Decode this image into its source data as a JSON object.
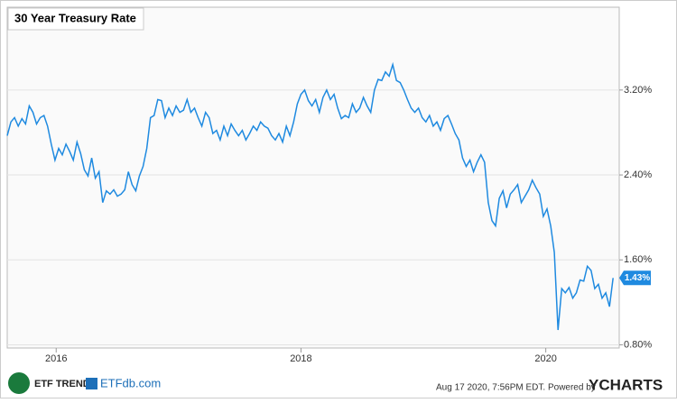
{
  "chart_data": {
    "type": "line",
    "title": "30 Year Treasury Rate",
    "x": [
      2015.6,
      2015.63,
      2015.66,
      2015.69,
      2015.72,
      2015.75,
      2015.78,
      2015.81,
      2015.84,
      2015.87,
      2015.9,
      2015.93,
      2015.96,
      2015.99,
      2016.02,
      2016.05,
      2016.08,
      2016.11,
      2016.14,
      2016.17,
      2016.2,
      2016.23,
      2016.26,
      2016.29,
      2016.32,
      2016.35,
      2016.38,
      2016.41,
      2016.44,
      2016.47,
      2016.5,
      2016.53,
      2016.56,
      2016.59,
      2016.62,
      2016.65,
      2016.68,
      2016.71,
      2016.74,
      2016.77,
      2016.8,
      2016.83,
      2016.86,
      2016.89,
      2016.92,
      2016.95,
      2016.98,
      2017.01,
      2017.04,
      2017.07,
      2017.1,
      2017.13,
      2017.16,
      2017.19,
      2017.22,
      2017.25,
      2017.28,
      2017.31,
      2017.34,
      2017.37,
      2017.4,
      2017.43,
      2017.46,
      2017.49,
      2017.52,
      2017.55,
      2017.58,
      2017.61,
      2017.64,
      2017.67,
      2017.7,
      2017.73,
      2017.76,
      2017.79,
      2017.82,
      2017.85,
      2017.88,
      2017.91,
      2017.94,
      2017.97,
      2018.0,
      2018.03,
      2018.06,
      2018.09,
      2018.12,
      2018.15,
      2018.18,
      2018.21,
      2018.24,
      2018.27,
      2018.3,
      2018.33,
      2018.36,
      2018.39,
      2018.42,
      2018.45,
      2018.48,
      2018.51,
      2018.54,
      2018.57,
      2018.6,
      2018.63,
      2018.66,
      2018.69,
      2018.72,
      2018.75,
      2018.78,
      2018.81,
      2018.84,
      2018.87,
      2018.9,
      2018.93,
      2018.96,
      2018.99,
      2019.02,
      2019.05,
      2019.08,
      2019.11,
      2019.14,
      2019.17,
      2019.2,
      2019.23,
      2019.26,
      2019.29,
      2019.32,
      2019.35,
      2019.38,
      2019.41,
      2019.44,
      2019.47,
      2019.5,
      2019.53,
      2019.56,
      2019.59,
      2019.62,
      2019.65,
      2019.68,
      2019.71,
      2019.74,
      2019.77,
      2019.8,
      2019.83,
      2019.86,
      2019.89,
      2019.92,
      2019.95,
      2019.98,
      2020.01,
      2020.04,
      2020.07,
      2020.1,
      2020.13,
      2020.16,
      2020.19,
      2020.22,
      2020.25,
      2020.28,
      2020.31,
      2020.34,
      2020.37,
      2020.4,
      2020.43,
      2020.46,
      2020.49,
      2020.52,
      2020.55
    ],
    "series": [
      {
        "color": "#1f8ae0",
        "values": [
          2.77,
          2.9,
          2.94,
          2.86,
          2.93,
          2.88,
          3.05,
          2.99,
          2.88,
          2.94,
          2.96,
          2.86,
          2.69,
          2.54,
          2.65,
          2.59,
          2.69,
          2.62,
          2.54,
          2.71,
          2.6,
          2.45,
          2.39,
          2.56,
          2.37,
          2.43,
          2.14,
          2.25,
          2.22,
          2.26,
          2.2,
          2.22,
          2.26,
          2.43,
          2.31,
          2.25,
          2.39,
          2.48,
          2.65,
          2.94,
          2.96,
          3.11,
          3.1,
          2.94,
          3.03,
          2.96,
          3.05,
          2.99,
          3.01,
          3.11,
          2.99,
          3.03,
          2.94,
          2.86,
          2.99,
          2.94,
          2.79,
          2.82,
          2.73,
          2.86,
          2.77,
          2.88,
          2.82,
          2.77,
          2.82,
          2.73,
          2.79,
          2.86,
          2.82,
          2.9,
          2.86,
          2.84,
          2.77,
          2.73,
          2.79,
          2.71,
          2.86,
          2.77,
          2.9,
          3.07,
          3.16,
          3.2,
          3.1,
          3.05,
          3.11,
          2.99,
          3.13,
          3.2,
          3.11,
          3.16,
          3.03,
          2.93,
          2.96,
          2.94,
          3.07,
          2.99,
          3.03,
          3.13,
          3.05,
          2.99,
          3.2,
          3.3,
          3.29,
          3.37,
          3.33,
          3.44,
          3.29,
          3.27,
          3.2,
          3.11,
          3.03,
          2.99,
          3.03,
          2.94,
          2.9,
          2.96,
          2.86,
          2.9,
          2.82,
          2.93,
          2.96,
          2.88,
          2.79,
          2.73,
          2.56,
          2.48,
          2.54,
          2.43,
          2.52,
          2.59,
          2.52,
          2.14,
          1.97,
          1.92,
          2.18,
          2.25,
          2.09,
          2.22,
          2.26,
          2.31,
          2.14,
          2.2,
          2.26,
          2.35,
          2.28,
          2.22,
          2.01,
          2.08,
          1.92,
          1.67,
          0.94,
          1.33,
          1.29,
          1.34,
          1.24,
          1.29,
          1.41,
          1.4,
          1.54,
          1.5,
          1.33,
          1.37,
          1.24,
          1.29,
          1.16,
          1.43
        ]
      }
    ],
    "xlim": [
      2015.6,
      2020.6
    ],
    "xticks": [
      2016,
      2018,
      2020
    ],
    "ylim": [
      0.77,
      3.98
    ],
    "yticks": [
      {
        "value": 0.8,
        "label": "0.80%"
      },
      {
        "value": 1.6,
        "label": "1.60%"
      },
      {
        "value": 2.4,
        "label": "2.40%"
      },
      {
        "value": 3.2,
        "label": "3.20%"
      }
    ],
    "grid": true,
    "annotations": [
      {
        "value": 1.43,
        "label": "1.43%"
      }
    ]
  },
  "footer": {
    "logo_left": "ETF TRENDS",
    "logo_right": "ETFdb.com",
    "timestamp": "Aug 17 2020, 7:56PM EDT.  Powered by",
    "brand": "YCHARTS"
  }
}
